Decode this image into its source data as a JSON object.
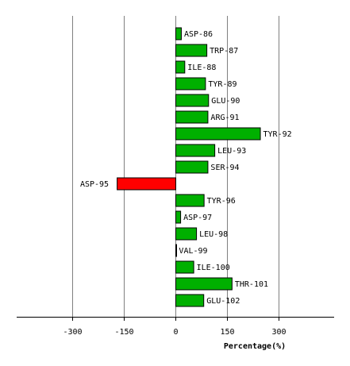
{
  "chart_data": {
    "type": "bar",
    "orientation": "horizontal",
    "categories": [
      "ASP-86",
      "TRP-87",
      "ILE-88",
      "TYR-89",
      "GLU-90",
      "ARG-91",
      "TYR-92",
      "LEU-93",
      "SER-94",
      "ASP-95",
      "TYR-96",
      "ASP-97",
      "LEU-98",
      "VAL-99",
      "ILE-100",
      "THR-101",
      "GLU-102"
    ],
    "values": [
      16,
      90,
      26,
      86,
      95,
      93,
      245,
      113,
      93,
      -170,
      82,
      14,
      60,
      1,
      52,
      163,
      81
    ],
    "xlabel": "Percentage(%)",
    "ylabel": "",
    "xlim": [
      -460,
      460
    ],
    "xticks": [
      -300,
      -150,
      0,
      150,
      300
    ],
    "xtick_labels": [
      "-300",
      "-150",
      "0",
      "150",
      "300"
    ],
    "grid": true,
    "colors": {
      "positive": "#00b000",
      "negative": "#ff0000",
      "stroke": "#000000",
      "grid": "#808080"
    }
  }
}
